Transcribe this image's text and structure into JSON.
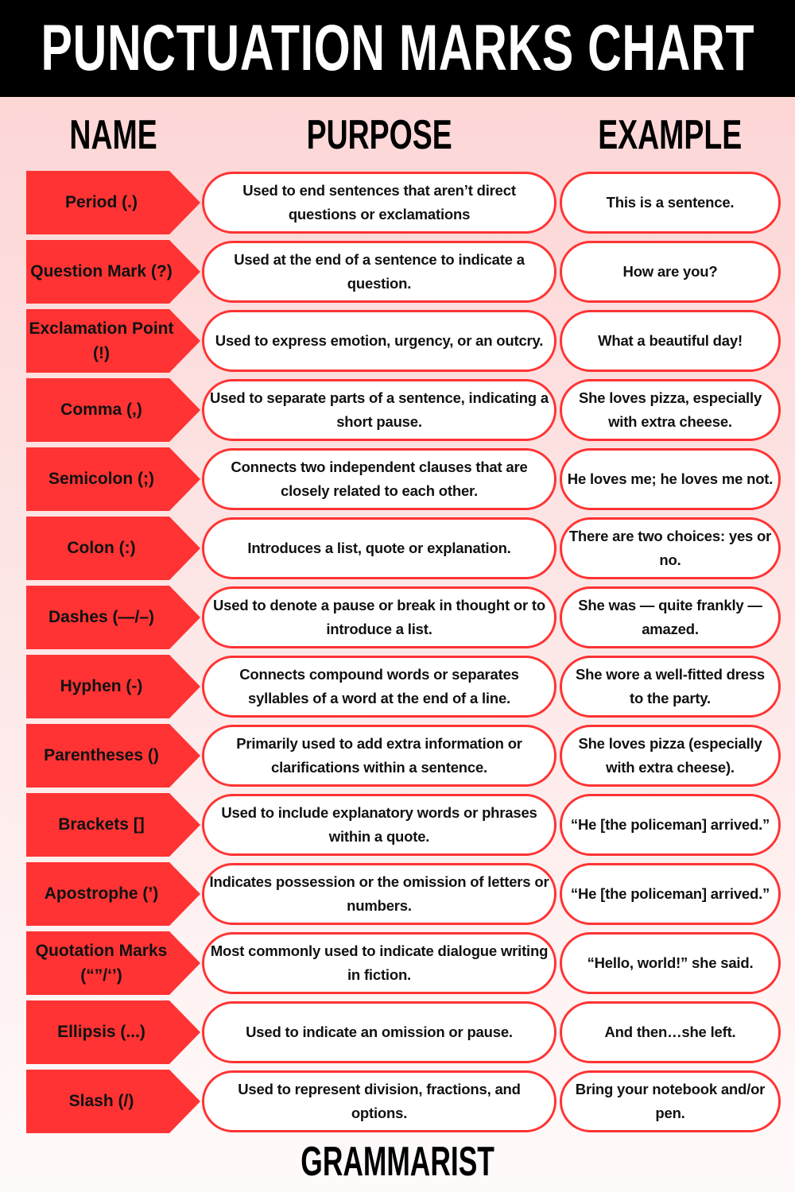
{
  "title": "PUNCTUATION MARKS CHART",
  "headers": {
    "name": "NAME",
    "purpose": "PURPOSE",
    "example": "EXAMPLE"
  },
  "colors": {
    "accent": "#ff3333",
    "titlebar": "#000000",
    "background": "#fdd3d3"
  },
  "rows": [
    {
      "name": "Period (.)",
      "purpose": "Used to end sentences that aren’t direct questions or exclamations",
      "example": "This is a sentence."
    },
    {
      "name": "Question Mark (?)",
      "purpose": "Used at the end of a sentence to indicate a question.",
      "example": "How are you?"
    },
    {
      "name": "Exclamation Point (!)",
      "purpose": "Used to express emotion, urgency, or an outcry.",
      "example": "What a beautiful day!"
    },
    {
      "name": "Comma (,)",
      "purpose": "Used to separate parts of a sentence, indicating a short pause.",
      "example": "She loves pizza, especially with extra cheese."
    },
    {
      "name": "Semicolon (;)",
      "purpose": "Connects two independent clauses that are closely related to each other.",
      "example": "He loves me; he loves me not."
    },
    {
      "name": "Colon (:)",
      "purpose": "Introduces a list, quote or explanation.",
      "example": "There are two choices: yes or no."
    },
    {
      "name": "Dashes (—/–)",
      "purpose": "Used to denote a pause or break in thought or to introduce a list.",
      "example": "She was — quite frankly — amazed."
    },
    {
      "name": "Hyphen (-)",
      "purpose": "Connects compound words or separates syllables of a word at the end of a line.",
      "example": "She wore a well-fitted dress to the party."
    },
    {
      "name": "Parentheses ()",
      "purpose": "Primarily used to add extra information or clarifications within a sentence.",
      "example": "She loves pizza (especially with extra cheese)."
    },
    {
      "name": "Brackets []",
      "purpose": "Used to include explanatory words or phrases within a quote.",
      "example": "“He [the policeman] arrived.”"
    },
    {
      "name": "Apostrophe (’)",
      "purpose": "Indicates possession or the omission of letters or numbers.",
      "example": "“He [the policeman] arrived.”"
    },
    {
      "name": "Quotation Marks (“”/‘’)",
      "purpose": "Most commonly used to indicate dialogue writing in fiction.",
      "example": "“Hello, world!” she said."
    },
    {
      "name": "Ellipsis (...)",
      "purpose": "Used to indicate an omission or pause.",
      "example": "And then…she left."
    },
    {
      "name": "Slash (/)",
      "purpose": "Used to represent division, fractions, and options.",
      "example": "Bring your notebook and/or pen."
    }
  ],
  "footer": "GRAMMARIST"
}
